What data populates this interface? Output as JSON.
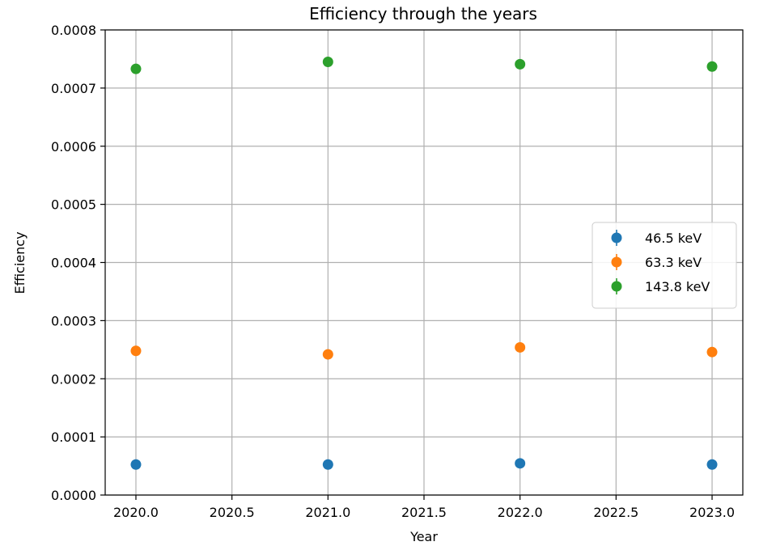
{
  "chart_data": {
    "type": "scatter",
    "title": "Efficiency through the years",
    "xlabel": "Year",
    "ylabel": "Efficiency",
    "xlim": [
      2019.84,
      2023.16
    ],
    "ylim": [
      0,
      0.0008
    ],
    "xticks": [
      2020.0,
      2020.5,
      2021.0,
      2021.5,
      2022.0,
      2022.5,
      2023.0
    ],
    "xtick_labels": [
      "2020.0",
      "2020.5",
      "2021.0",
      "2021.5",
      "2022.0",
      "2022.5",
      "2023.0"
    ],
    "yticks": [
      0,
      0.0001,
      0.0002,
      0.0003,
      0.0004,
      0.0005,
      0.0006,
      0.0007,
      0.0008
    ],
    "ytick_labels": [
      "0.0000",
      "0.0001",
      "0.0002",
      "0.0003",
      "0.0004",
      "0.0005",
      "0.0006",
      "0.0007",
      "0.0008"
    ],
    "grid": true,
    "legend_position": "center-right",
    "x": [
      2020,
      2021,
      2022,
      2023
    ],
    "series": [
      {
        "name": "46.5 keV",
        "color": "#1f77b4",
        "values": [
          5.25e-05,
          5.25e-05,
          5.45e-05,
          5.25e-05
        ]
      },
      {
        "name": "63.3 keV",
        "color": "#ff7f0e",
        "values": [
          0.000248,
          0.000242,
          0.000254,
          0.000246
        ]
      },
      {
        "name": "143.8 keV",
        "color": "#2ca02c",
        "values": [
          0.000733,
          0.000745,
          0.000741,
          0.000737
        ]
      }
    ]
  }
}
